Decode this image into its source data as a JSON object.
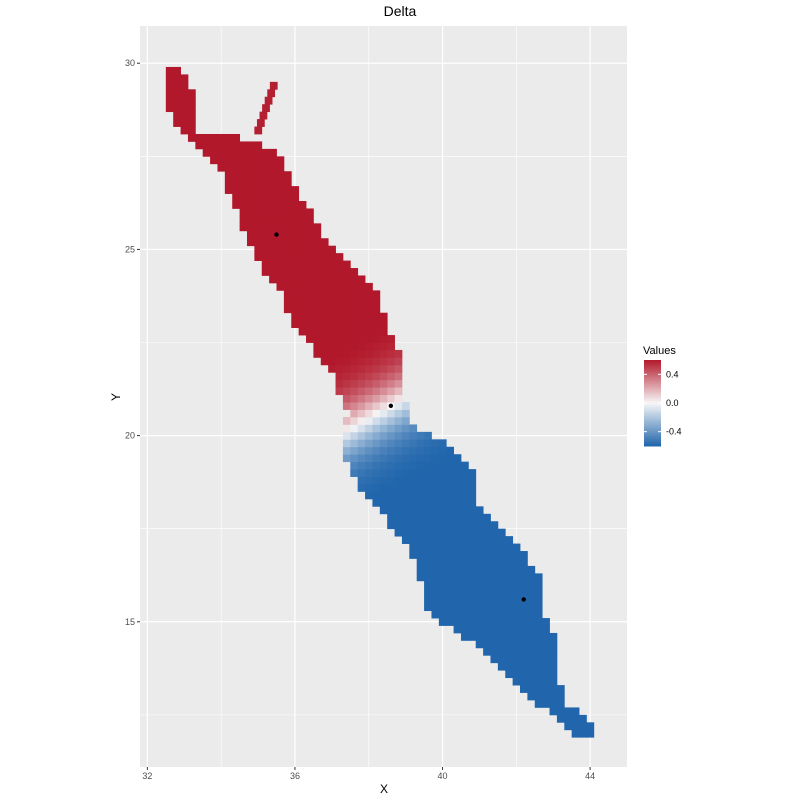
{
  "chart_data": {
    "type": "heatmap",
    "title": "Delta",
    "xlabel": "X",
    "ylabel": "Y",
    "xlim": [
      31.8,
      45.0
    ],
    "ylim": [
      11.1,
      31.0
    ],
    "x_ticks": [
      32,
      36,
      40,
      44
    ],
    "y_ticks": [
      15,
      20,
      25,
      30
    ],
    "x_tick_labels": [
      "32",
      "36",
      "40",
      "44"
    ],
    "y_tick_labels": [
      "15",
      "20",
      "25",
      "30"
    ],
    "grid": true,
    "tile_size": 0.2,
    "value_range": [
      -0.6,
      0.6
    ],
    "colors": {
      "panel_bg": "#ebebeb",
      "grid": "#ffffff",
      "high": "#b2182b",
      "mid": "#f7f7f7",
      "low": "#2166ac"
    },
    "legend": {
      "title": "Values",
      "placement": "right",
      "ticks": [
        0.4,
        0.0,
        -0.4
      ],
      "tick_labels": [
        "0.4",
        "0.0",
        "-0.4"
      ]
    },
    "points": [
      {
        "x": 35.5,
        "y": 25.4
      },
      {
        "x": 38.6,
        "y": 20.8
      },
      {
        "x": 42.2,
        "y": 15.6
      }
    ],
    "profile": [
      {
        "y": 29.8,
        "xmin": 32.5,
        "xmax": 33.0
      },
      {
        "y": 29.0,
        "xmin": 32.5,
        "xmax": 33.3
      },
      {
        "y": 28.2,
        "xmin": 33.0,
        "xmax": 34.0
      },
      {
        "y": 27.6,
        "xmin": 33.6,
        "xmax": 35.6
      },
      {
        "y": 27.0,
        "xmin": 34.1,
        "xmax": 35.9
      },
      {
        "y": 26.2,
        "xmin": 34.4,
        "xmax": 36.3
      },
      {
        "y": 25.4,
        "xmin": 34.8,
        "xmax": 36.8
      },
      {
        "y": 24.6,
        "xmin": 35.1,
        "xmax": 37.6
      },
      {
        "y": 23.8,
        "xmin": 35.7,
        "xmax": 38.3
      },
      {
        "y": 23.0,
        "xmin": 36.0,
        "xmax": 38.5
      },
      {
        "y": 22.4,
        "xmin": 36.5,
        "xmax": 38.8
      },
      {
        "y": 21.6,
        "xmin": 37.2,
        "xmax": 38.9
      },
      {
        "y": 21.0,
        "xmin": 37.3,
        "xmax": 39.0
      },
      {
        "y": 20.6,
        "xmin": 37.5,
        "xmax": 39.1
      },
      {
        "y": 20.2,
        "xmin": 37.4,
        "xmax": 39.3
      },
      {
        "y": 19.8,
        "xmin": 37.3,
        "xmax": 40.2
      },
      {
        "y": 19.3,
        "xmin": 37.5,
        "xmax": 40.7
      },
      {
        "y": 18.7,
        "xmin": 37.8,
        "xmax": 41.0
      },
      {
        "y": 18.1,
        "xmin": 38.2,
        "xmax": 41.0
      },
      {
        "y": 17.5,
        "xmin": 38.8,
        "xmax": 41.6
      },
      {
        "y": 16.9,
        "xmin": 39.2,
        "xmax": 42.2
      },
      {
        "y": 16.3,
        "xmin": 39.4,
        "xmax": 42.6
      },
      {
        "y": 15.7,
        "xmin": 39.6,
        "xmax": 42.8
      },
      {
        "y": 15.1,
        "xmin": 39.8,
        "xmax": 42.8
      },
      {
        "y": 14.5,
        "xmin": 40.8,
        "xmax": 43.1
      },
      {
        "y": 13.9,
        "xmin": 41.6,
        "xmax": 43.1
      },
      {
        "y": 13.3,
        "xmin": 42.0,
        "xmax": 43.2
      },
      {
        "y": 12.8,
        "xmin": 42.6,
        "xmax": 43.4
      },
      {
        "y": 12.3,
        "xmin": 43.4,
        "xmax": 44.0
      },
      {
        "y": 12.0,
        "xmin": 43.6,
        "xmax": 44.1
      }
    ]
  }
}
